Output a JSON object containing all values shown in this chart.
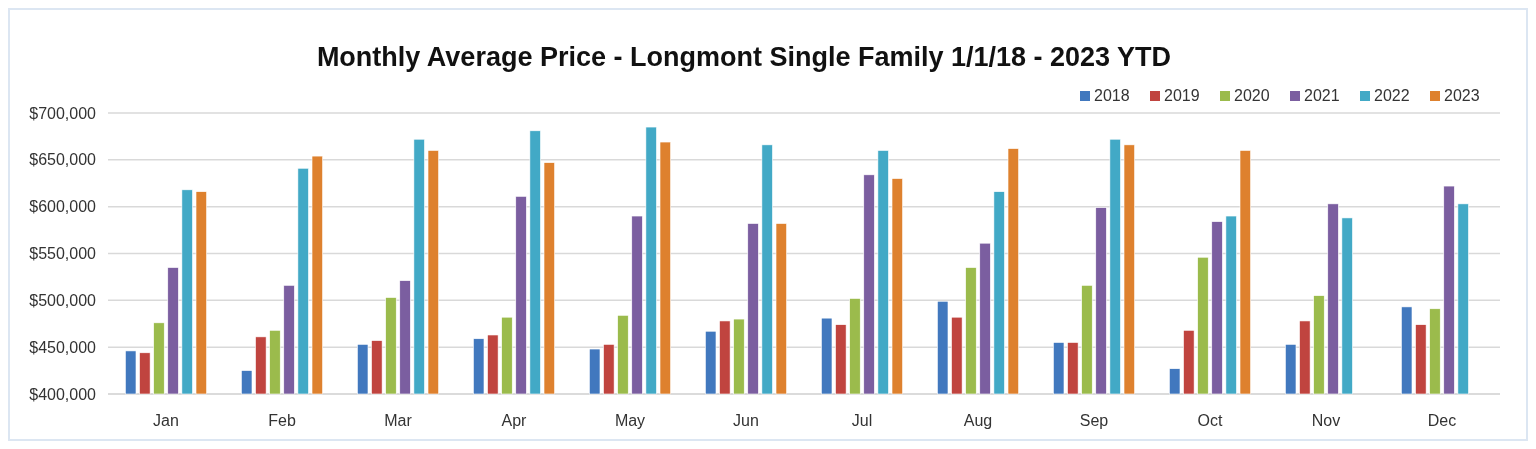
{
  "chart_data": {
    "type": "bar",
    "title": "Monthly Average Price - Longmont Single Family 1/1/18 - 2023 YTD",
    "categories": [
      "Jan",
      "Feb",
      "Mar",
      "Apr",
      "May",
      "Jun",
      "Jul",
      "Aug",
      "Sep",
      "Oct",
      "Nov",
      "Dec"
    ],
    "series": [
      {
        "name": "2018",
        "color": "#4178be",
        "values": [
          446000,
          425000,
          453000,
          459000,
          448000,
          467000,
          481000,
          499000,
          455000,
          427000,
          453000,
          493000
        ]
      },
      {
        "name": "2019",
        "color": "#c0443f",
        "values": [
          444000,
          461000,
          457000,
          463000,
          453000,
          478000,
          474000,
          482000,
          455000,
          468000,
          478000,
          474000
        ]
      },
      {
        "name": "2020",
        "color": "#9bbb4c",
        "values": [
          476000,
          468000,
          503000,
          482000,
          484000,
          480000,
          502000,
          535000,
          516000,
          546000,
          505000,
          491000
        ]
      },
      {
        "name": "2021",
        "color": "#7b5ea0",
        "values": [
          535000,
          516000,
          521000,
          611000,
          590000,
          582000,
          634000,
          561000,
          599000,
          584000,
          603000,
          622000
        ]
      },
      {
        "name": "2022",
        "color": "#42a9c6",
        "values": [
          618000,
          641000,
          672000,
          681000,
          685000,
          666000,
          660000,
          616000,
          672000,
          590000,
          588000,
          603000
        ]
      },
      {
        "name": "2023",
        "color": "#de812e",
        "values": [
          616000,
          654000,
          660000,
          647000,
          669000,
          582000,
          630000,
          662000,
          666000,
          660000,
          null,
          null
        ]
      }
    ],
    "ylim": [
      400000,
      700000
    ],
    "yticks": [
      {
        "value": 400000,
        "label": "$400,000"
      },
      {
        "value": 450000,
        "label": "$450,000"
      },
      {
        "value": 500000,
        "label": "$500,000"
      },
      {
        "value": 550000,
        "label": "$550,000"
      },
      {
        "value": 600000,
        "label": "$600,000"
      },
      {
        "value": 650000,
        "label": "$650,000"
      },
      {
        "value": 700000,
        "label": "$700,000"
      }
    ],
    "grid": "y",
    "legend": "top right"
  }
}
